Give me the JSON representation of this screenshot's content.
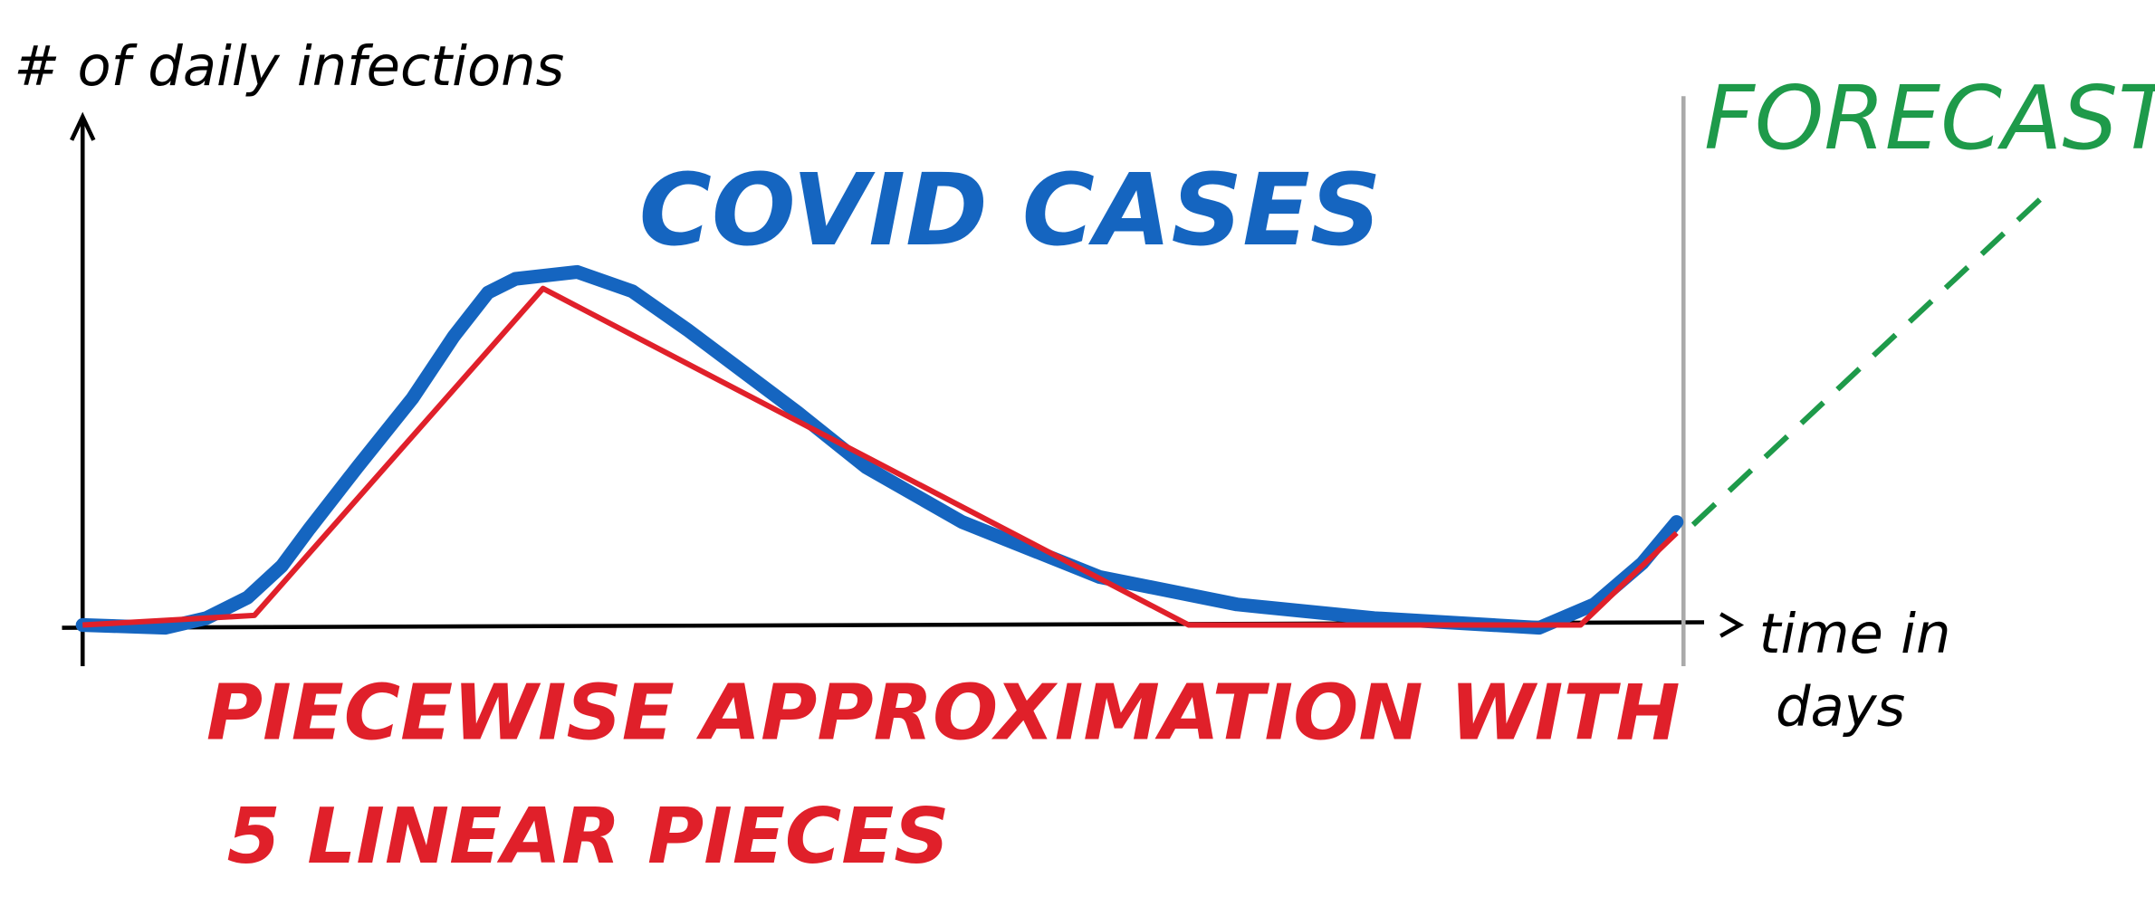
{
  "y_axis_label": "# of daily infections",
  "curve_label": "COVID CASES",
  "forecast_label": "FORECAST",
  "x_axis_label": [
    "time in",
    "days"
  ],
  "approximation_label": [
    "PIECEWISE APPROXIMATION WITH",
    "5 LINEAR PIECES"
  ]
}
